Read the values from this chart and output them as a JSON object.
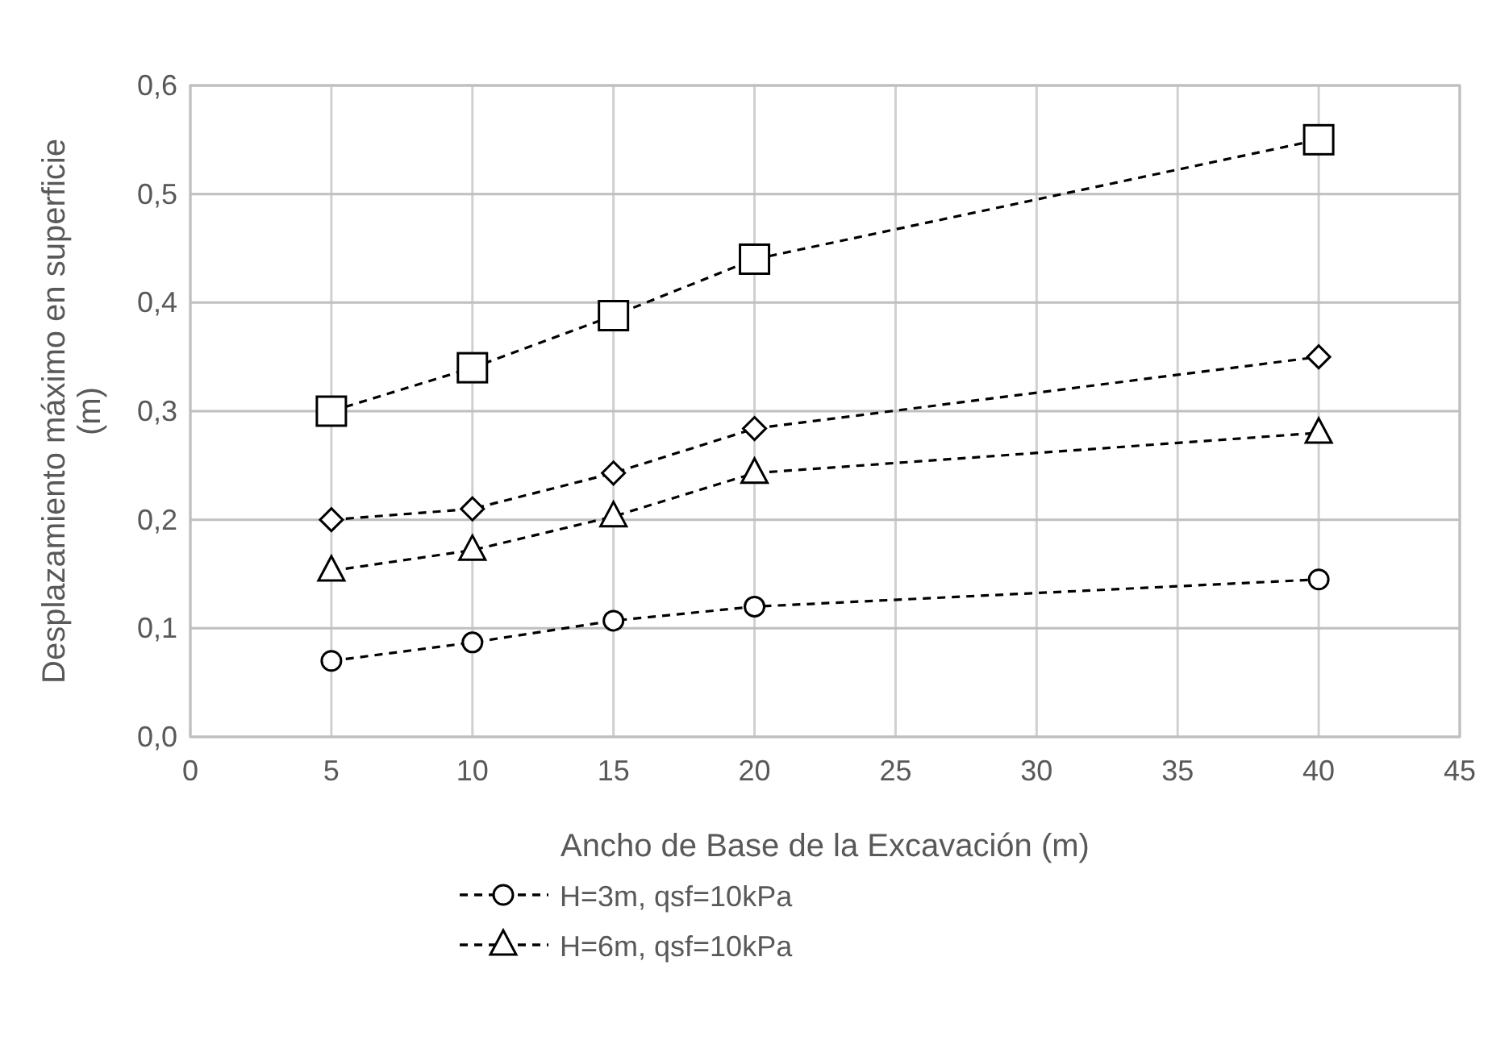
{
  "chart_data": {
    "type": "line",
    "xlabel": "Ancho de Base de la Excavación (m)",
    "ylabel": "Desplazamiento máximo en superficie (m)",
    "x": [
      5,
      10,
      15,
      20,
      40
    ],
    "xlim": [
      0,
      45
    ],
    "xticks": [
      0,
      5,
      10,
      15,
      20,
      25,
      30,
      35,
      40,
      45
    ],
    "ylim": [
      0,
      0.6
    ],
    "yticks": [
      {
        "value": 0,
        "label": "0,0"
      },
      {
        "value": 0.1,
        "label": "0,1"
      },
      {
        "value": 0.2,
        "label": "0,2"
      },
      {
        "value": 0.3,
        "label": "0,3"
      },
      {
        "value": 0.4,
        "label": "0,4"
      },
      {
        "value": 0.5,
        "label": "0,5"
      },
      {
        "value": 0.6,
        "label": "0,6"
      }
    ],
    "grid": true,
    "legend": "bottom",
    "line_style": "dashed",
    "series": [
      {
        "name": "H=3m, qsf=10kPa",
        "color": "#000000",
        "marker": "circle",
        "values": [
          0.07,
          0.087,
          0.107,
          0.12,
          0.145
        ]
      },
      {
        "name": "H=6m, qsf=10kPa",
        "color": "#000000",
        "marker": "triangle",
        "values": [
          0.153,
          0.172,
          0.203,
          0.243,
          0.28
        ]
      },
      {
        "color": "#000000",
        "marker": "diamond",
        "values": [
          0.2,
          0.21,
          0.243,
          0.284,
          0.35
        ]
      },
      {
        "color": "#000000",
        "marker": "square",
        "values": [
          0.3,
          0.34,
          0.388,
          0.44,
          0.55
        ]
      }
    ]
  }
}
